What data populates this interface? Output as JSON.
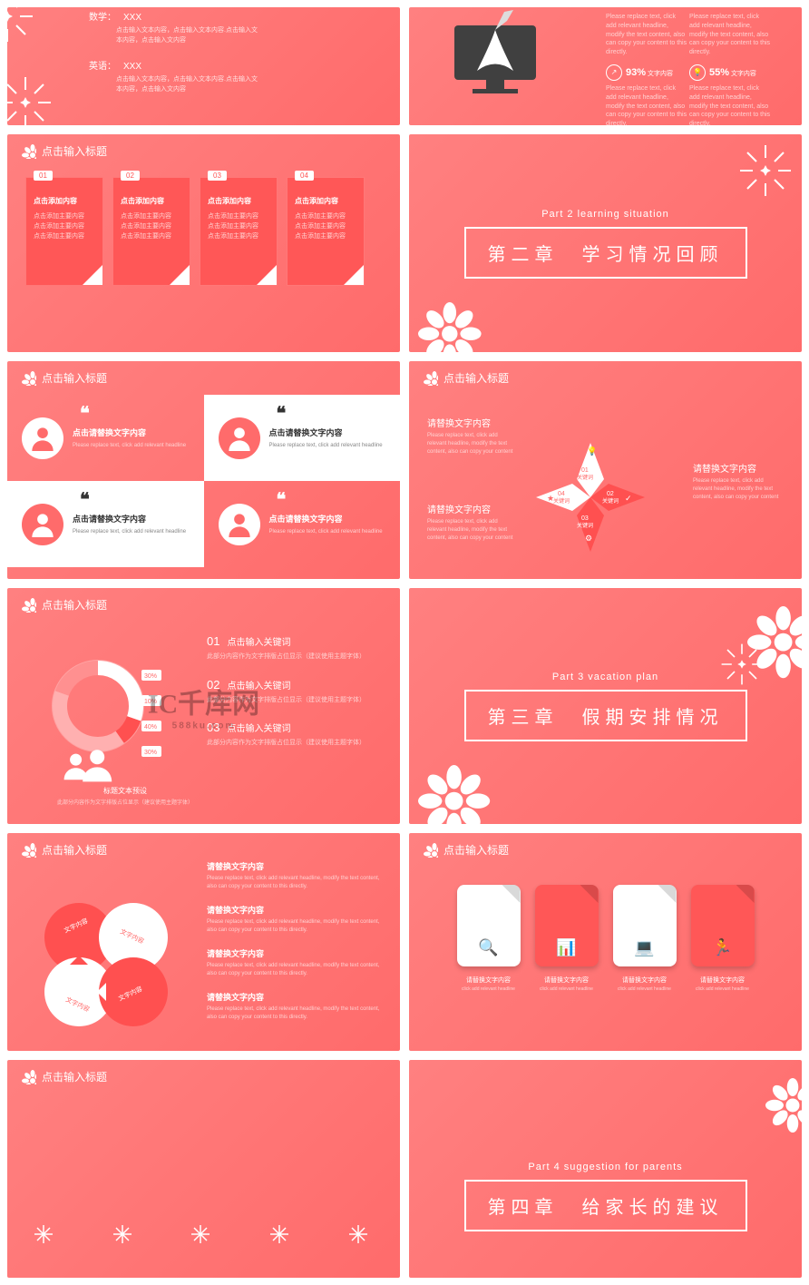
{
  "colors": {
    "bg": "#ff6b6b",
    "bg2": "#ff8080",
    "accent": "#ff5757",
    "white": "#ffffff",
    "text_dim": "#ffd0d0"
  },
  "watermark": {
    "main": "千库网",
    "logo": "IC",
    "url": "588ku.com"
  },
  "header_title": "点击输入标题",
  "r1l": {
    "rows": [
      {
        "label": "数学：",
        "name": "XXX",
        "desc": "点击输入文本内容，点击输入文本内容.点击输入文本内容，点击输入文内容"
      },
      {
        "label": "英语：",
        "name": "XXX",
        "desc": "点击输入文本内容，点击输入文本内容.点击输入文本内容，点击输入文内容"
      }
    ]
  },
  "r1r": {
    "stats": [
      {
        "pct": "93%",
        "label": "文字内容",
        "icon": "rocket",
        "desc": "Please replace text, click add relevant headline, modify the text content, also can copy your content to this directly."
      },
      {
        "pct": "55%",
        "label": "文字内容",
        "icon": "bulb",
        "desc": "Please replace text, click add relevant headline, modify the text content, also can copy your content to this directly."
      }
    ],
    "top_desc": "Please replace text, click add relevant headline, modify the text content, also can copy your content to this directly."
  },
  "cards": [
    {
      "num": "01",
      "title": "点击添加内容",
      "lines": [
        "点击添加主要内容",
        "点击添加主要内容",
        "点击添加主要内容"
      ]
    },
    {
      "num": "02",
      "title": "点击添加内容",
      "lines": [
        "点击添加主要内容",
        "点击添加主要内容",
        "点击添加主要内容"
      ]
    },
    {
      "num": "03",
      "title": "点击添加内容",
      "lines": [
        "点击添加主要内容",
        "点击添加主要内容",
        "点击添加主要内容"
      ]
    },
    {
      "num": "04",
      "title": "点击添加内容",
      "lines": [
        "点击添加主要内容",
        "点击添加主要内容",
        "点击添加主要内容"
      ]
    }
  ],
  "chapter2": {
    "part": "Part 2  learning situation",
    "title": "第二章　学习情况回顾"
  },
  "chapter3": {
    "part": "Part 3  vacation plan",
    "title": "第三章　假期安排情况"
  },
  "chapter4": {
    "part": "Part 4  suggestion for parents",
    "title": "第四章　给家长的建议"
  },
  "persons": [
    {
      "h": "点击请替换文字内容",
      "p": "Please replace text, click add relevant headline",
      "quote": "❝"
    },
    {
      "h": "点击请替换文字内容",
      "p": "Please replace text, click add relevant headline",
      "quote": "❝"
    },
    {
      "h": "点击请替换文字内容",
      "p": "Please replace text, click add relevant headline",
      "quote": "❝"
    },
    {
      "h": "点击请替换文字内容",
      "p": "Please replace text, click add relevant headline",
      "quote": "❝"
    }
  ],
  "star": {
    "labels": [
      "01 关键词",
      "02 关键词",
      "03 关键词",
      "04 关键词"
    ],
    "side": {
      "h": "请替换文字内容",
      "p": "Please replace text, click add relevant headline, modify the text content, also can copy your content"
    }
  },
  "pie": {
    "segments": [
      {
        "label": "30%",
        "val": 30
      },
      {
        "label": "10%",
        "val": 10
      },
      {
        "label": "40%",
        "val": 40
      },
      {
        "label": "30%",
        "val": 30
      }
    ],
    "caption": "标题文本预设",
    "caption_sub": "此部分内容作为文字排版占位显示（建议使用主题字体）"
  },
  "list3": [
    {
      "num": "01",
      "h": "点击输入关键词",
      "p": "此部分内容作为文字排版占位显示（建议使用主题字体）"
    },
    {
      "num": "02",
      "h": "点击输入关键词",
      "p": "此部分内容作为文字排版占位显示（建议使用主题字体）"
    },
    {
      "num": "03",
      "h": "点击输入关键词",
      "p": "此部分内容作为文字排版占位显示（建议使用主题字体）"
    }
  ],
  "circles": {
    "labels": [
      "文字内容",
      "文字内容",
      "文字内容",
      "文字内容"
    ]
  },
  "list4": [
    {
      "h": "请替换文字内容",
      "p": "Please replace text, click add relevant headline, modify the text content, also can copy your content to this directly."
    },
    {
      "h": "请替换文字内容",
      "p": "Please replace text, click add relevant headline, modify the text content, also can copy your content to this directly."
    },
    {
      "h": "请替换文字内容",
      "p": "Please replace text, click add relevant headline, modify the text content, also can copy your content to this directly."
    },
    {
      "h": "请替换文字内容",
      "p": "Please replace text, click add relevant headline, modify the text content, also can copy your content to this directly."
    }
  ],
  "tabs": [
    {
      "label": "请替换文字内容",
      "sub": "click add relevant headline",
      "style": "w"
    },
    {
      "label": "请替换文字内容",
      "sub": "click add relevant headline",
      "style": "r"
    },
    {
      "label": "请替换文字内容",
      "sub": "click add relevant headline",
      "style": "w"
    },
    {
      "label": "请替换文字内容",
      "sub": "click add relevant headline",
      "style": "r"
    }
  ]
}
